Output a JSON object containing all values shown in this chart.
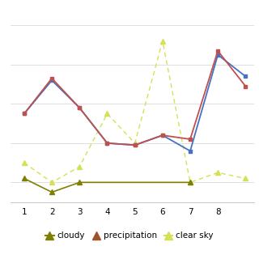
{
  "blue_x": [
    1,
    2,
    3,
    4,
    5,
    6,
    7,
    8,
    9
  ],
  "blue_y": [
    5.5,
    7.2,
    5.8,
    4.0,
    3.9,
    4.4,
    3.6,
    8.5,
    7.4
  ],
  "red_x": [
    1,
    2,
    3,
    4,
    5,
    6,
    7,
    8,
    9
  ],
  "red_y": [
    5.5,
    7.3,
    5.8,
    4.0,
    3.9,
    4.4,
    4.2,
    8.7,
    6.9
  ],
  "cloudy_x": [
    1,
    2,
    3,
    4,
    5,
    6,
    7,
    8,
    9
  ],
  "cloudy_y": [
    2.2,
    1.5,
    2.0,
    null,
    null,
    null,
    2.0,
    null,
    null
  ],
  "sky_x": [
    1,
    2,
    3,
    4,
    5,
    6,
    7,
    8,
    9
  ],
  "sky_y": [
    3.0,
    2.0,
    2.8,
    5.5,
    4.0,
    9.2,
    2.0,
    2.5,
    2.2
  ],
  "colors": {
    "blue": "#4472c4",
    "red": "#c0504d",
    "cloudy": "#7f7f00",
    "sky": "#d4e157"
  },
  "xlim": [
    0.5,
    9.3
  ],
  "ylim": [
    1.0,
    10.5
  ],
  "xticks": [
    1,
    2,
    3,
    4,
    5,
    6,
    7,
    8
  ],
  "bg_color": "#ffffff",
  "grid_color": "#d9d9d9"
}
